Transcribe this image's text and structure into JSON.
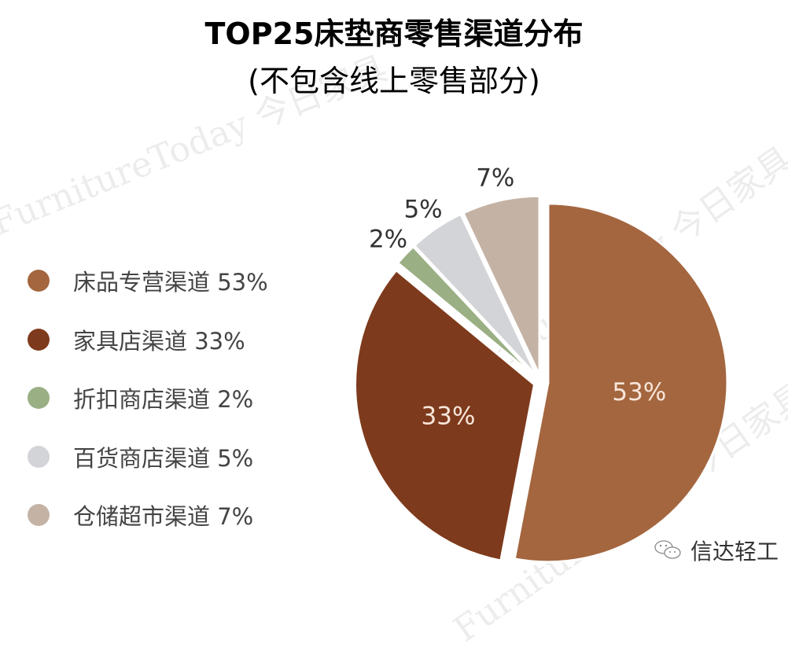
{
  "title": "TOP25床垫商零售渠道分布",
  "subtitle": "(不包含线上零售部分)",
  "watermark": "FurnitureToday 今日家具",
  "brand": {
    "icon": "wechat-icon",
    "label": "信达轻工"
  },
  "chart_data": {
    "type": "pie",
    "title": "TOP25床垫商零售渠道分布",
    "subtitle": "(不包含线上零售部分)",
    "legend_position": "left",
    "exploded": true,
    "start": "top",
    "direction": "clockwise",
    "slices": [
      {
        "label": "床品专营渠道 53%",
        "name": "床品专营渠道",
        "value": 53,
        "data_label": "53%",
        "color": "#a4663f",
        "label_inside": true
      },
      {
        "label": "家具店渠道 33%",
        "name": "家具店渠道",
        "value": 33,
        "data_label": "33%",
        "color": "#7e3a1c",
        "label_inside": true
      },
      {
        "label": "折扣商店渠道 2%",
        "name": "折扣商店渠道",
        "value": 2,
        "data_label": "2%",
        "color": "#9aaf84",
        "label_inside": false
      },
      {
        "label": "百货商店渠道 5%",
        "name": "百货商店渠道",
        "value": 5,
        "data_label": "5%",
        "color": "#d3d4d8",
        "label_inside": false
      },
      {
        "label": "仓储超市渠道 7%",
        "name": "仓储超市渠道",
        "value": 7,
        "data_label": "7%",
        "color": "#c4b3a5",
        "label_inside": false
      }
    ]
  }
}
